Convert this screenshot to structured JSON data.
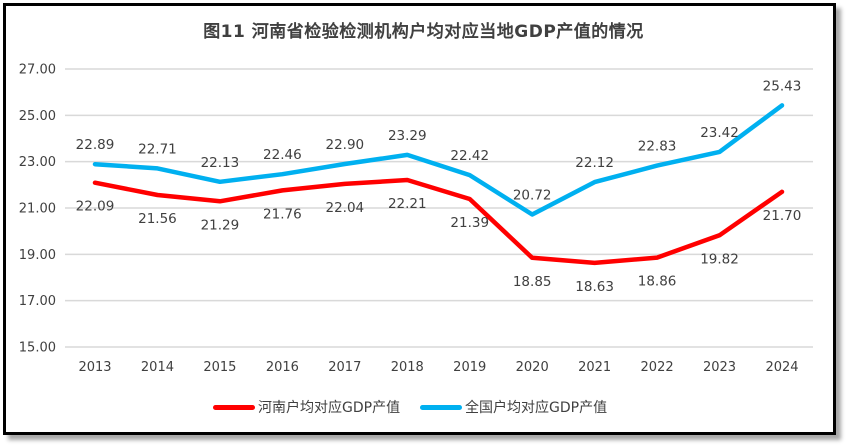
{
  "chart_data": {
    "type": "line",
    "title": "图11  河南省检验检测机构户均对应当地GDP产值的情况",
    "xlabel": "",
    "ylabel": "",
    "categories": [
      "2013",
      "2014",
      "2015",
      "2016",
      "2017",
      "2018",
      "2019",
      "2020",
      "2021",
      "2022",
      "2023",
      "2024"
    ],
    "ylim": [
      15,
      27
    ],
    "yticks": [
      15,
      17,
      19,
      21,
      23,
      25,
      27
    ],
    "ytick_labels": [
      "15.00",
      "17.00",
      "19.00",
      "21.00",
      "23.00",
      "25.00",
      "27.00"
    ],
    "grid": true,
    "legend_position": "bottom",
    "series": [
      {
        "name": "河南户均对应GDP产值",
        "color": "#FF0000",
        "label_position": "below",
        "values": [
          22.09,
          21.56,
          21.29,
          21.76,
          22.04,
          22.21,
          21.39,
          18.85,
          18.63,
          18.86,
          19.82,
          21.7
        ],
        "labels": [
          "22.09",
          "21.56",
          "21.29",
          "21.76",
          "22.04",
          "22.21",
          "21.39",
          "18.85",
          "18.63",
          "18.86",
          "19.82",
          "21.70"
        ]
      },
      {
        "name": "全国户均对应GDP产值",
        "color": "#00B0F0",
        "label_position": "above",
        "values": [
          22.89,
          22.71,
          22.13,
          22.46,
          22.9,
          23.29,
          22.42,
          20.72,
          22.12,
          22.83,
          23.42,
          25.43
        ],
        "labels": [
          "22.89",
          "22.71",
          "22.13",
          "22.46",
          "22.90",
          "23.29",
          "22.42",
          "20.72",
          "22.12",
          "22.83",
          "23.42",
          "25.43"
        ]
      }
    ]
  },
  "colors": {
    "text": "#404040",
    "grid": "#D9D9D9",
    "frame": "#000000"
  }
}
